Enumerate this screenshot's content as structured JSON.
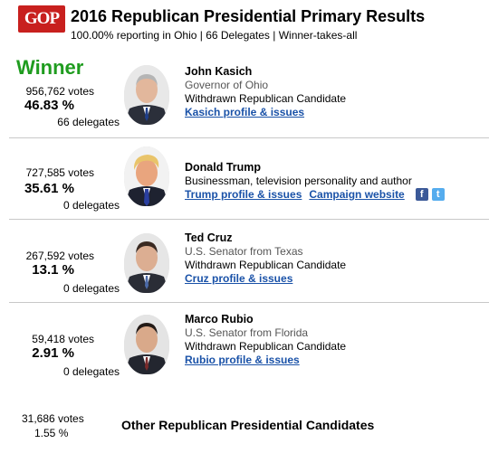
{
  "header": {
    "logo_text": "GOP",
    "title": "2016 Republican Presidential Primary Results",
    "subtitle": "100.00% reporting in Ohio | 66 Delegates | Winner-takes-all"
  },
  "winner_label": "Winner",
  "candidates": [
    {
      "name": "John Kasich",
      "office": "Governor of Ohio",
      "status": "Withdrawn Republican Candidate",
      "votes": "956,762 votes",
      "percent": "46.83 %",
      "delegates": "66 delegates",
      "profile_link": "Kasich profile & issues",
      "photo": "kasich-photo"
    },
    {
      "name": "Donald Trump",
      "office": "Businessman, television personality and author",
      "status": "",
      "votes": "727,585 votes",
      "percent": "35.61 %",
      "delegates": "0 delegates",
      "profile_link": "Trump profile & issues",
      "campaign_link": "Campaign website",
      "photo": "trump-photo"
    },
    {
      "name": "Ted Cruz",
      "office": "U.S. Senator from Texas",
      "status": "Withdrawn Republican Candidate",
      "votes": "267,592 votes",
      "percent": "13.1 %",
      "delegates": "0 delegates",
      "profile_link": "Cruz profile & issues",
      "photo": "cruz-photo"
    },
    {
      "name": "Marco Rubio",
      "office": "U.S. Senator from Florida",
      "status": "Withdrawn Republican Candidate",
      "votes": "59,418 votes",
      "percent": "2.91 %",
      "delegates": "0 delegates",
      "profile_link": "Rubio profile & issues",
      "photo": "rubio-photo"
    }
  ],
  "others": {
    "votes": "31,686 votes",
    "percent": "1.55 %",
    "label": "Other Republican Presidential Candidates"
  },
  "colors": {
    "winner": "#1f9c1f",
    "link": "#1a52a8",
    "logo": "#c8201e"
  }
}
